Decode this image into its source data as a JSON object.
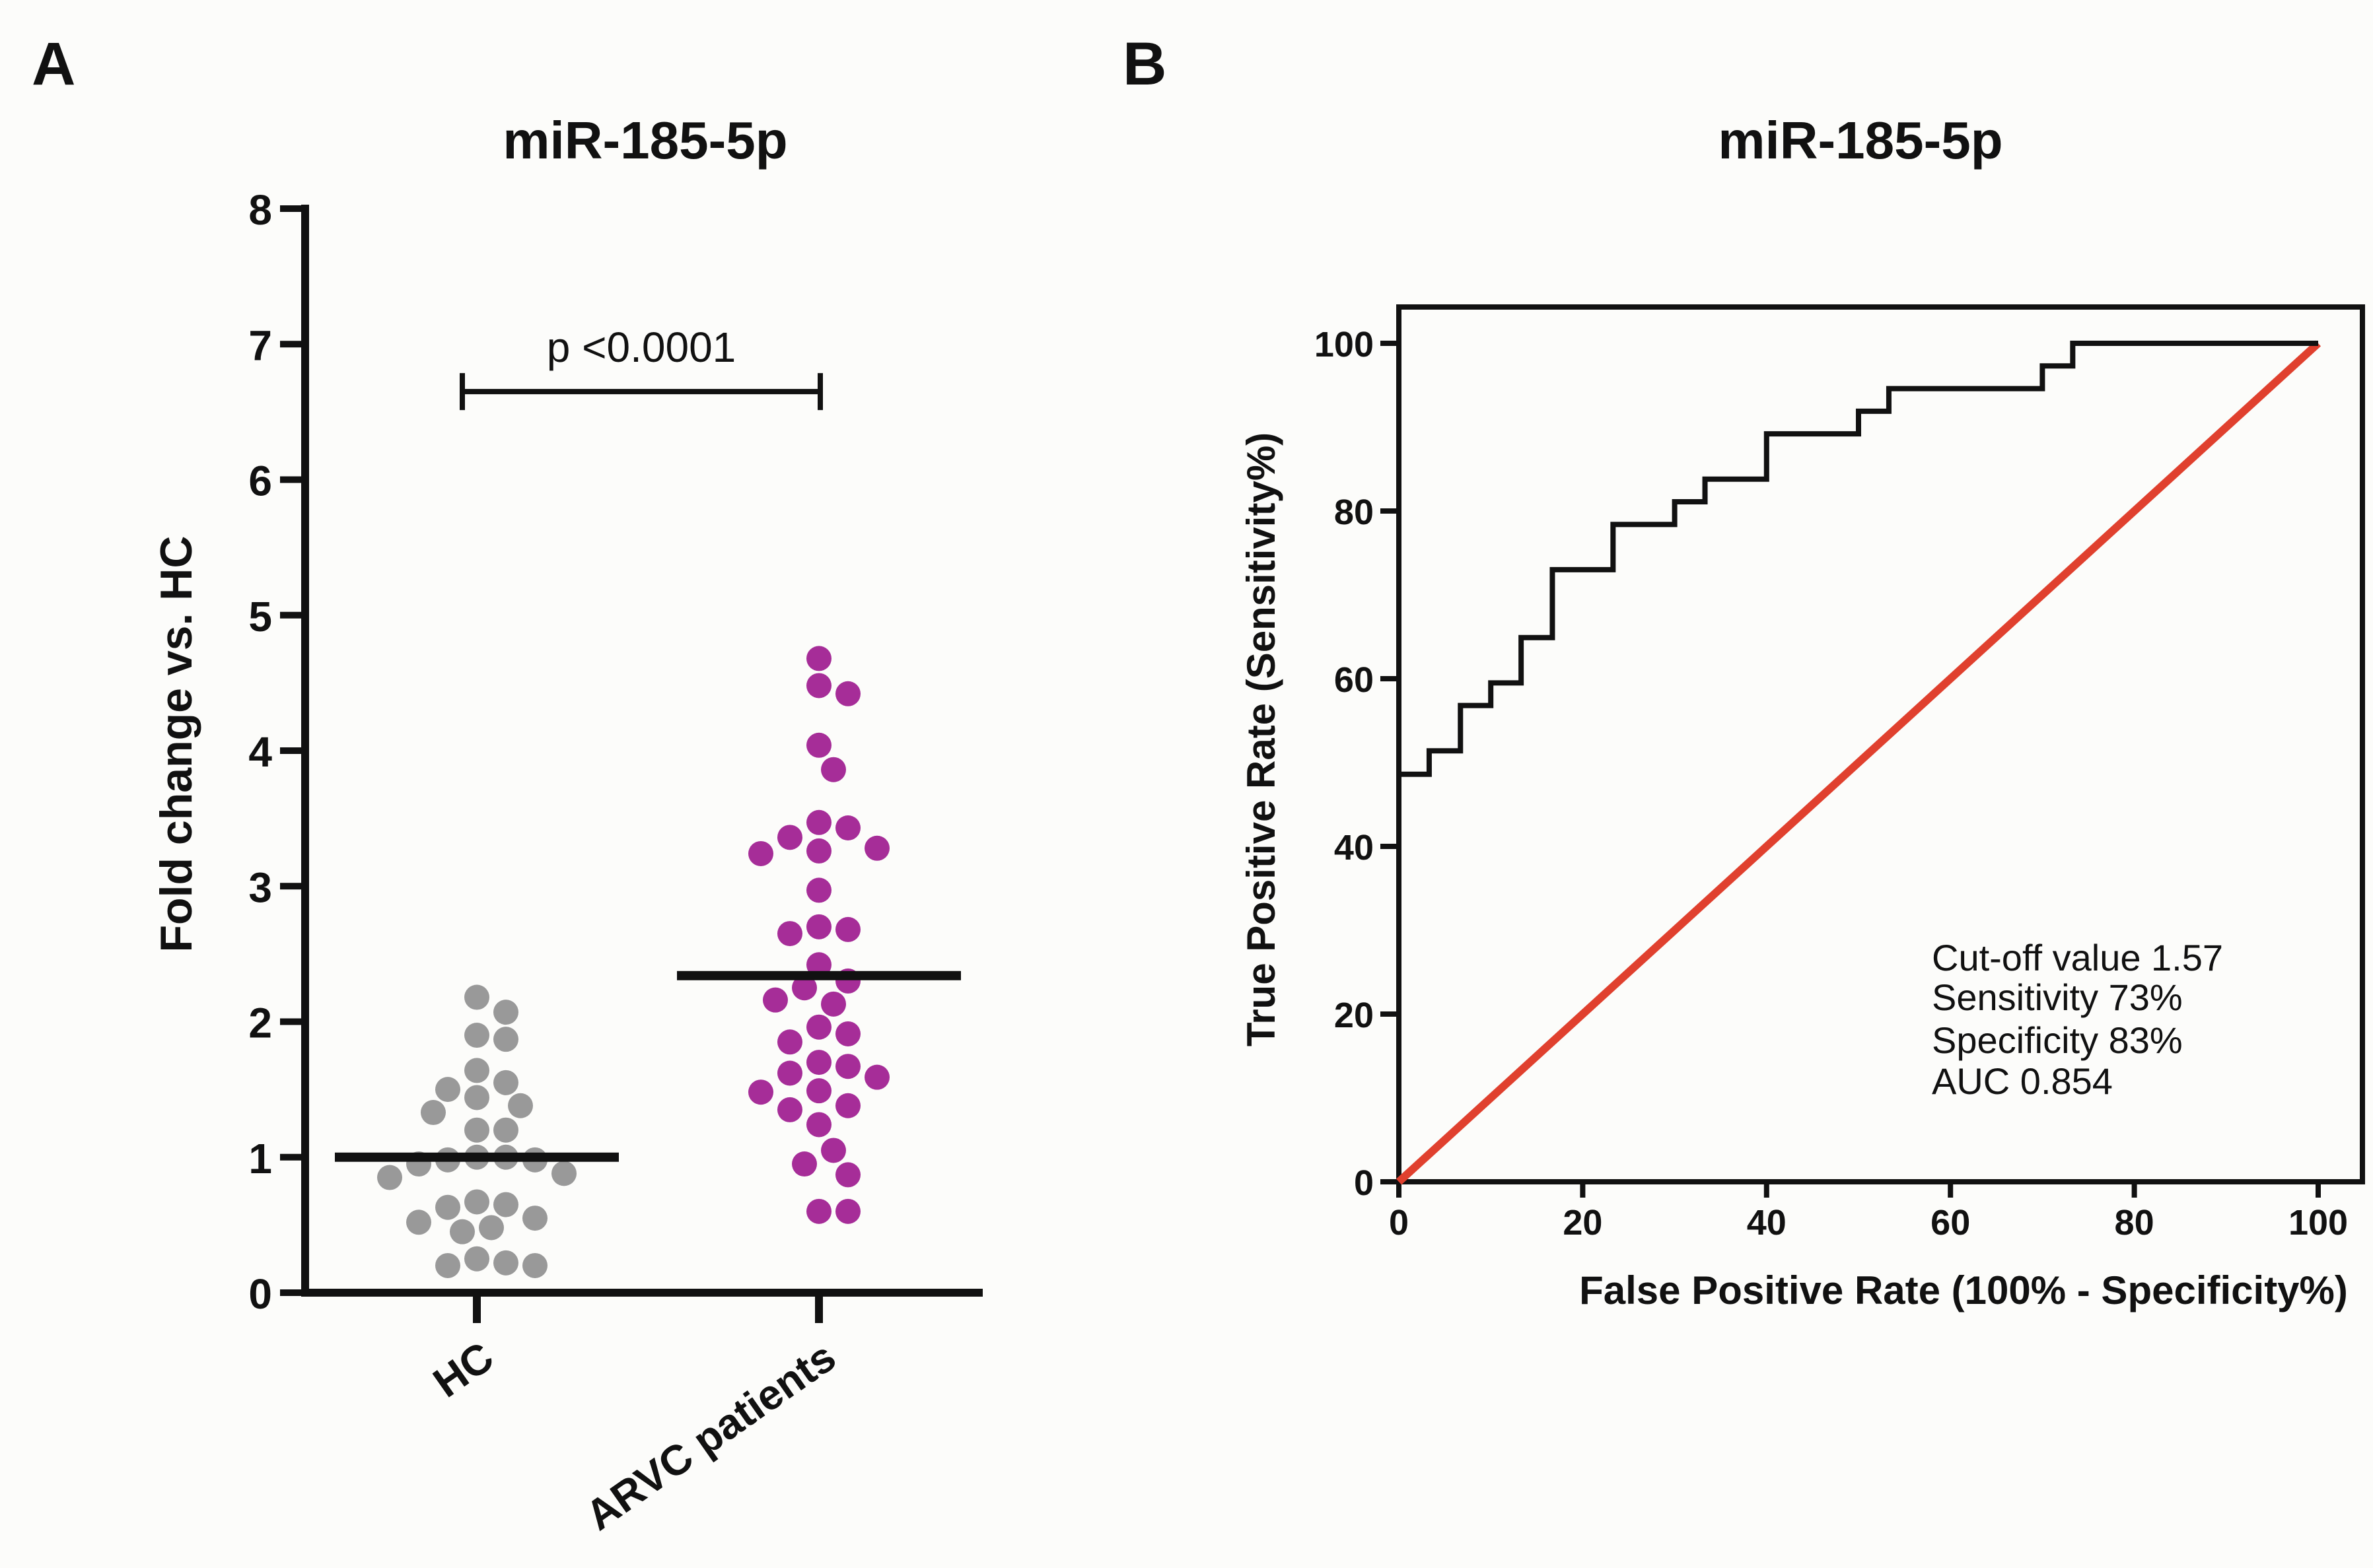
{
  "panels": {
    "a_label": "A",
    "b_label": "B"
  },
  "colors": {
    "hc": "#999999",
    "arvc": "#A62D98",
    "roc": "#111111",
    "diagonal": "#E0402E",
    "axis": "#111111"
  },
  "chart_data": [
    {
      "type": "scatter",
      "title": "miR-185-5p",
      "ylabel": "Fold change vs. HC",
      "xlabel": "",
      "ylim": [
        0,
        8
      ],
      "yticks": [
        "0",
        "1",
        "2",
        "3",
        "4",
        "5",
        "6",
        "7",
        "8"
      ],
      "categories": [
        "HC",
        "ARVC patients"
      ],
      "series": [
        {
          "name": "HC",
          "mean": 1.0,
          "values": [
            2.18,
            2.07,
            1.9,
            1.87,
            1.64,
            1.55,
            1.5,
            1.44,
            1.38,
            1.33,
            1.2,
            1.2,
            1.0,
            1.0,
            0.98,
            0.98,
            0.95,
            0.88,
            0.85,
            0.67,
            0.65,
            0.63,
            0.55,
            0.52,
            0.48,
            0.45,
            0.25,
            0.22,
            0.2,
            0.2
          ]
        },
        {
          "name": "ARVC patients",
          "mean": 2.34,
          "values": [
            4.68,
            4.48,
            4.42,
            4.04,
            3.86,
            3.47,
            3.43,
            3.36,
            3.28,
            3.26,
            3.24,
            2.97,
            2.7,
            2.68,
            2.65,
            2.42,
            2.3,
            2.25,
            2.16,
            2.13,
            1.96,
            1.91,
            1.85,
            1.7,
            1.67,
            1.62,
            1.59,
            1.49,
            1.48,
            1.38,
            1.35,
            1.24,
            1.05,
            0.95,
            0.87,
            0.6,
            0.6
          ]
        }
      ],
      "annotation": {
        "text": "p <0.0001",
        "y": 6.65,
        "from": "HC",
        "to": "ARVC patients"
      }
    },
    {
      "type": "line",
      "title": "miR-185-5p",
      "xlabel": "False Positive Rate (100% - Specificity%)",
      "ylabel": "True Positive Rate (Sensitivity%)",
      "xlim": [
        0,
        100
      ],
      "ylim": [
        0,
        100
      ],
      "xticks": [
        "0",
        "20",
        "40",
        "60",
        "80",
        "100"
      ],
      "yticks": [
        "0",
        "20",
        "40",
        "60",
        "80",
        "100"
      ],
      "series": [
        {
          "name": "ROC curve",
          "points": [
            [
              0,
              48.6
            ],
            [
              3.3,
              48.6
            ],
            [
              3.3,
              51.4
            ],
            [
              6.7,
              51.4
            ],
            [
              6.7,
              56.8
            ],
            [
              10,
              56.8
            ],
            [
              10,
              59.5
            ],
            [
              13.3,
              59.5
            ],
            [
              13.3,
              64.9
            ],
            [
              16.7,
              64.9
            ],
            [
              16.7,
              73.0
            ],
            [
              23.3,
              73.0
            ],
            [
              23.3,
              78.4
            ],
            [
              30,
              78.4
            ],
            [
              30,
              81.1
            ],
            [
              33.3,
              81.1
            ],
            [
              33.3,
              83.8
            ],
            [
              40,
              83.8
            ],
            [
              40,
              89.2
            ],
            [
              50,
              89.2
            ],
            [
              50,
              91.9
            ],
            [
              53.3,
              91.9
            ],
            [
              53.3,
              94.6
            ],
            [
              70,
              94.6
            ],
            [
              70,
              97.3
            ],
            [
              73.3,
              97.3
            ],
            [
              73.3,
              100
            ],
            [
              100,
              100
            ]
          ]
        },
        {
          "name": "Reference line",
          "points": [
            [
              0,
              0
            ],
            [
              100,
              100
            ]
          ]
        }
      ],
      "annotation": {
        "lines": [
          "Cut-off value 1.57",
          "Sensitivity 73%",
          "Specificity 83%",
          "AUC  0.854"
        ]
      }
    }
  ]
}
